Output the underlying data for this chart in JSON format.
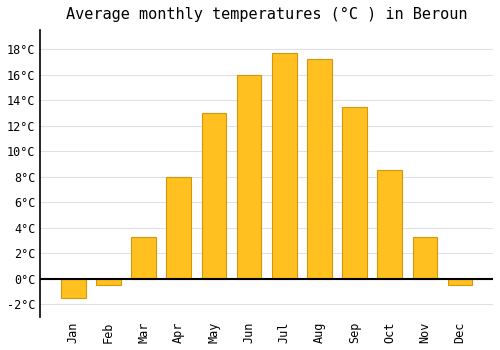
{
  "title": "Average monthly temperatures (°C ) in Beroun",
  "months": [
    "Jan",
    "Feb",
    "Mar",
    "Apr",
    "May",
    "Jun",
    "Jul",
    "Aug",
    "Sep",
    "Oct",
    "Nov",
    "Dec"
  ],
  "values": [
    -1.5,
    -0.5,
    3.3,
    8.0,
    13.0,
    16.0,
    17.7,
    17.2,
    13.5,
    8.5,
    3.3,
    -0.5
  ],
  "bar_color": "#FFC020",
  "bar_edge_color": "#D4960A",
  "background_color": "#ffffff",
  "grid_color": "#e0e0e8",
  "ylim": [
    -3.0,
    19.5
  ],
  "yticks": [
    -2,
    0,
    2,
    4,
    6,
    8,
    10,
    12,
    14,
    16,
    18
  ],
  "title_fontsize": 11,
  "tick_fontsize": 8.5,
  "font_family": "monospace"
}
